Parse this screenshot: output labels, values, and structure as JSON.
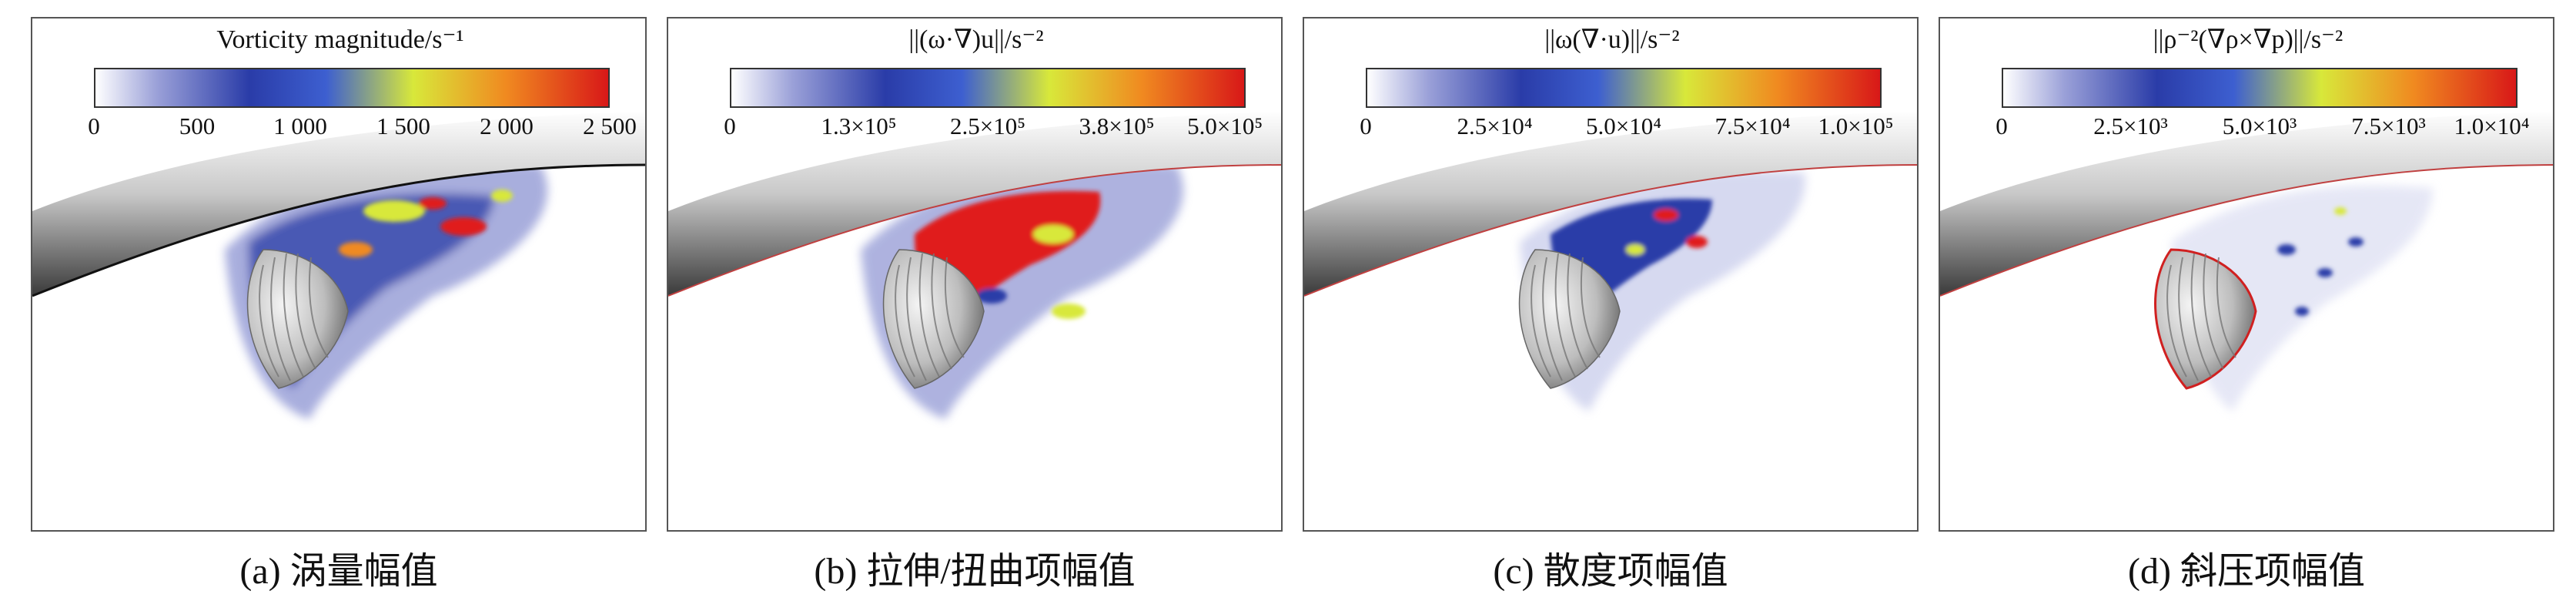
{
  "panels": [
    {
      "cb_title": "Vorticity magnitude/s⁻¹",
      "ticks": [
        "0",
        "500",
        "1 000",
        "1 500",
        "2 000",
        "2 500"
      ],
      "caption": "(a) 涡量幅值"
    },
    {
      "cb_title": "||(ω·∇)u||/s⁻²",
      "ticks": [
        "0",
        "1.3×10⁵",
        "2.5×10⁵",
        "3.8×10⁵",
        "5.0×10⁵"
      ],
      "caption": "(b) 拉伸/扭曲项幅值"
    },
    {
      "cb_title": "||ω(∇·u)||/s⁻²",
      "ticks": [
        "0",
        "2.5×10⁴",
        "5.0×10⁴",
        "7.5×10⁴",
        "1.0×10⁵"
      ],
      "caption": "(c) 散度项幅值"
    },
    {
      "cb_title": "||ρ⁻²(∇ρ×∇p)||/s⁻²",
      "ticks": [
        "0",
        "2.5×10³",
        "5.0×10³",
        "7.5×10³",
        "1.0×10⁴"
      ],
      "caption": "(d) 斜压项幅值"
    }
  ],
  "colors": {
    "low": "#ffffff",
    "mid_low": "#2a3ca8",
    "mid": "#d8e83a",
    "high": "#e01b1b",
    "surface": "#b5b5b5"
  }
}
